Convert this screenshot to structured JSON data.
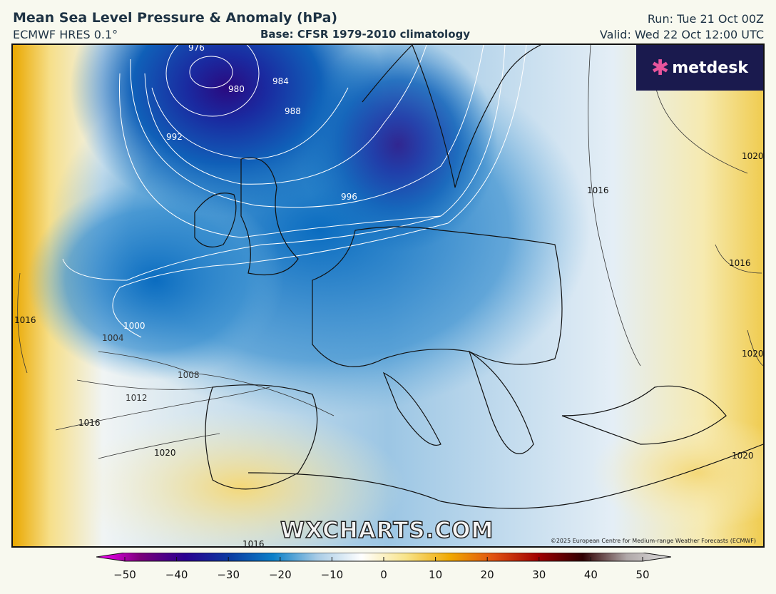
{
  "header": {
    "title": "Mean Sea Level Pressure & Anomaly (hPa)",
    "model": "ECMWF HRES 0.1°",
    "base": "Base: CFSR 1979-2010 climatology",
    "run": "Run: Tue 21 Oct 00Z",
    "valid": "Valid: Wed 22 Oct 12:00 UTC"
  },
  "logo": {
    "text": "metdesk"
  },
  "watermark": "WXCHARTS.COM",
  "copyright": "©2025 European Centre for Medium-range Weather Forecasts (ECMWF)",
  "isobar_labels": [
    "976",
    "980",
    "984",
    "988",
    "992",
    "996",
    "1000",
    "1004",
    "1008",
    "1012",
    "1016",
    "1020",
    "1016",
    "1016",
    "1016",
    "1020",
    "1020",
    "1020",
    "1016"
  ],
  "colorbar": {
    "ticks": [
      "−50",
      "−40",
      "−30",
      "−20",
      "−10",
      "0",
      "10",
      "20",
      "30",
      "40",
      "50"
    ],
    "range": [
      -50,
      50
    ],
    "colors": [
      "#ff00ff",
      "#7a007a",
      "#2a0090",
      "#0a3aa0",
      "#0a80c8",
      "#a8cce6",
      "#ffffff",
      "#f8e48a",
      "#f0a800",
      "#e05010",
      "#a00000",
      "#300000",
      "#b0a8a8",
      "#e0e0e0"
    ]
  }
}
